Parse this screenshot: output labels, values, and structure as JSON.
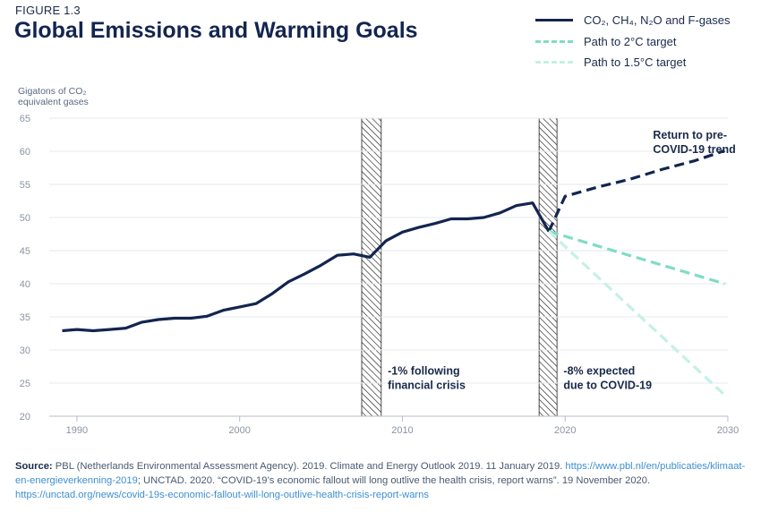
{
  "figure_label": "FIGURE 1.3",
  "title": "Global Emissions and Warming Goals",
  "colors": {
    "historical": "#13254f",
    "path_2c": "#7fddc3",
    "path_15c": "#c5f0e6",
    "axis": "#b8bcc4",
    "grid": "#e6e8ec",
    "text": "#1a2a4a",
    "link": "#3d8fd1"
  },
  "legend": [
    {
      "label": "CO₂, CH₄, N₂O and F-gases",
      "series": "historical"
    },
    {
      "label": "Path to 2°C target",
      "series": "path_2c"
    },
    {
      "label": "Path to 1.5°C target",
      "series": "path_15c"
    }
  ],
  "source": {
    "label": "Source:",
    "text1": " PBL (Netherlands Environmental Assessment Agency). 2019. Climate and Energy Outlook 2019. 11 January 2019. ",
    "link1": "https://www.pbl.nl/en/publicaties/klimaat-en-energieverkenning-2019",
    "text2": "; UNCTAD. 2020. “COVID-19’s economic fallout will long outlive the health crisis, report warns”. 19 November 2020. ",
    "link2": "https://unctad.org/news/covid-19s-economic-fallout-will-long-outlive-health-crisis-report-warns"
  },
  "chart_data": {
    "type": "line",
    "ylabel": "Gigatons of CO₂ equivalent gases",
    "xlabel": "",
    "xlim": [
      1988.3,
      2030
    ],
    "ylim": [
      20,
      65
    ],
    "yticks": [
      20,
      25,
      30,
      35,
      40,
      45,
      50,
      55,
      60,
      65
    ],
    "xticks": [
      1990,
      2000,
      2010,
      2020,
      2030
    ],
    "series": [
      {
        "name": "CO₂, CH₄, N₂O and F-gases",
        "key": "historical",
        "style": "solid",
        "x": [
          1989.1,
          1990,
          1991,
          1992,
          1993,
          1994,
          1995,
          1996,
          1997,
          1998,
          1999,
          2000,
          2001,
          2002,
          2003,
          2004,
          2005,
          2006,
          2007,
          2008,
          2009,
          2010,
          2011,
          2012,
          2013,
          2014,
          2015,
          2016,
          2017,
          2018,
          2019
        ],
        "y": [
          32.9,
          33.1,
          32.9,
          33.1,
          33.3,
          34.2,
          34.6,
          34.8,
          34.8,
          35.1,
          36.0,
          36.5,
          37.0,
          38.5,
          40.3,
          41.5,
          42.8,
          44.3,
          44.5,
          44.0,
          46.5,
          47.8,
          48.5,
          49.1,
          49.8,
          49.8,
          50.0,
          50.7,
          51.8,
          52.2,
          47.9
        ]
      },
      {
        "name": "Return to pre-COVID-19 trend",
        "key": "historical",
        "style": "dashed",
        "x": [
          2019,
          2020,
          2022,
          2024,
          2026,
          2028,
          2029.8
        ],
        "y": [
          47.9,
          53.2,
          54.6,
          55.8,
          57.3,
          58.6,
          60.1
        ]
      },
      {
        "name": "Path to 2°C target",
        "key": "path_2c",
        "style": "dashed",
        "x": [
          2019,
          2029.8
        ],
        "y": [
          47.9,
          40.0
        ]
      },
      {
        "name": "Path to 1.5°C target",
        "key": "path_15c",
        "style": "dashed",
        "x": [
          2019,
          2029.8
        ],
        "y": [
          47.9,
          23.2
        ]
      }
    ],
    "shaded_periods": [
      {
        "name": "financial-crisis-band",
        "from": 2007.5,
        "to": 2008.7
      },
      {
        "name": "covid-band",
        "from": 2018.4,
        "to": 2019.5
      }
    ],
    "annotations": [
      {
        "name": "financial-crisis-annotation",
        "lines": [
          "-1% following",
          "financial crisis"
        ],
        "x": 2009.1,
        "y": 26.3
      },
      {
        "name": "covid-annotation",
        "lines": [
          "-8% expected",
          "due to COVID-19"
        ],
        "x": 2019.9,
        "y": 26.3
      },
      {
        "name": "pre-covid-trend-annotation",
        "lines": [
          "Return to pre-",
          "COVID-19 trend"
        ],
        "x": 2025.4,
        "y": 61.9
      }
    ]
  }
}
